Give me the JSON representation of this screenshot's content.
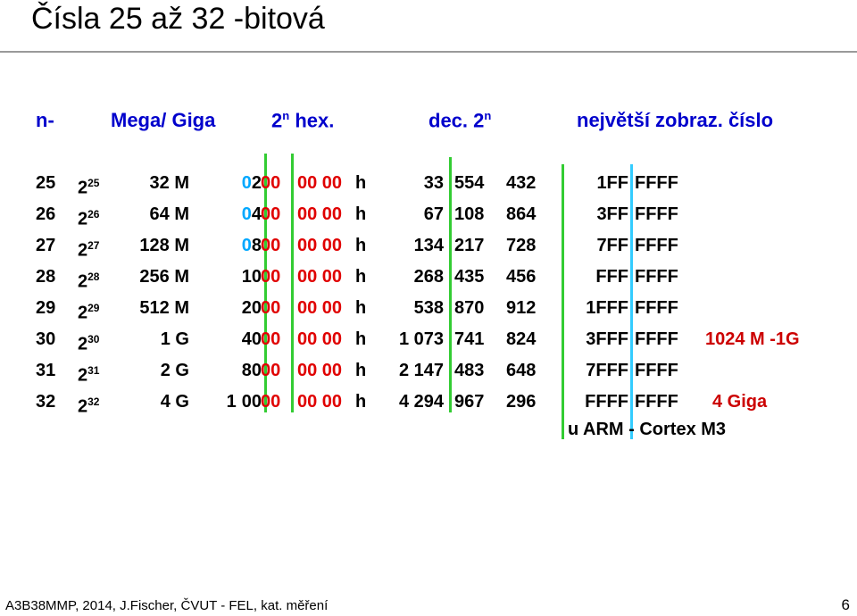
{
  "title": "Čísla   25  až 32  -bitová",
  "headers": {
    "n": "n-",
    "mega": "Mega/ Giga",
    "hex_base": "2",
    "hex_sup": "n",
    "hex_rest": " hex.",
    "dec_base": "dec. 2",
    "dec_sup": "n",
    "max": "největší zobraz. číslo"
  },
  "rows": [
    {
      "n": "25",
      "pow_base": "2",
      "pow_exp": "25",
      "mega": "32 M",
      "hex_a": "",
      "hex_b": "0",
      "hex_c": "2",
      "hex_d": "00",
      "hex_e": "00 00",
      "hex_f": "h",
      "dec_a": "33",
      "dec_b": "554",
      "dec_c": "432",
      "max_a": "1FF",
      "max_b": "FFFF",
      "note": ""
    },
    {
      "n": "26",
      "pow_base": "2",
      "pow_exp": "26",
      "mega": "64 M",
      "hex_a": "",
      "hex_b": "0",
      "hex_c": "4",
      "hex_d": "00",
      "hex_e": "00 00",
      "hex_f": "h",
      "dec_a": "67",
      "dec_b": "108",
      "dec_c": "864",
      "max_a": "3FF",
      "max_b": "FFFF",
      "note": ""
    },
    {
      "n": "27",
      "pow_base": "2",
      "pow_exp": "27",
      "mega": "128 M",
      "hex_a": "",
      "hex_b": "0",
      "hex_c": "8",
      "hex_d": "00",
      "hex_e": "00 00",
      "hex_f": "h",
      "dec_a": "134",
      "dec_b": "217",
      "dec_c": "728",
      "max_a": "7FF",
      "max_b": "FFFF",
      "note": ""
    },
    {
      "n": "28",
      "pow_base": "2",
      "pow_exp": "28",
      "mega": "256 M",
      "hex_a": "",
      "hex_b": "10",
      "hex_c": "",
      "hex_d": "00",
      "hex_e": "00 00",
      "hex_f": "h",
      "dec_a": "268",
      "dec_b": "435",
      "dec_c": "456",
      "max_a": "FFF",
      "max_b": "FFFF",
      "note": ""
    },
    {
      "n": "29",
      "pow_base": "2",
      "pow_exp": "29",
      "mega": "512 M",
      "hex_a": "",
      "hex_b": "20",
      "hex_c": "",
      "hex_d": "00",
      "hex_e": "00 00",
      "hex_f": "h",
      "dec_a": "538",
      "dec_b": "870",
      "dec_c": "912",
      "max_a": "1FFF",
      "max_b": "FFFF",
      "note": ""
    },
    {
      "n": "30",
      "pow_base": "2",
      "pow_exp": "30",
      "mega": "1 G",
      "hex_a": "",
      "hex_b": "40",
      "hex_c": "",
      "hex_d": "00",
      "hex_e": "00 00",
      "hex_f": "h",
      "dec_a": "1 073",
      "dec_b": "741",
      "dec_c": "824",
      "max_a": "3FFF",
      "max_b": "FFFF",
      "note": "1024 M -1G"
    },
    {
      "n": "31",
      "pow_base": "2",
      "pow_exp": "31",
      "mega": "2 G",
      "hex_a": "",
      "hex_b": "80",
      "hex_c": "",
      "hex_d": "00",
      "hex_e": "00 00",
      "hex_f": "h",
      "dec_a": "2 147",
      "dec_b": "483",
      "dec_c": "648",
      "max_a": "7FFF",
      "max_b": "FFFF",
      "note": ""
    },
    {
      "n": "32",
      "pow_base": "2",
      "pow_exp": "32",
      "mega": "4 G",
      "hex_a": "1",
      "hex_b": "00",
      "hex_c": "",
      "hex_d": "00",
      "hex_e": "00 00",
      "hex_f": "h",
      "dec_a": "4 294",
      "dec_b": "967",
      "dec_c": "296",
      "max_a": "FFFF",
      "max_b": "FFFF",
      "note": "4 Giga"
    }
  ],
  "arm_note": "u ARM - Cortex M3",
  "footer": "A3B38MMP, 2014, J.Fischer, ČVUT - FEL, kat. měření",
  "page_number": "6",
  "colors": {
    "header": "#0000cc",
    "hex_red": "#e00000",
    "hex_cyan": "#00a8ff",
    "green_rule": "#33cc33",
    "cyan_rule": "#33ccff",
    "note": "#cc0000"
  }
}
